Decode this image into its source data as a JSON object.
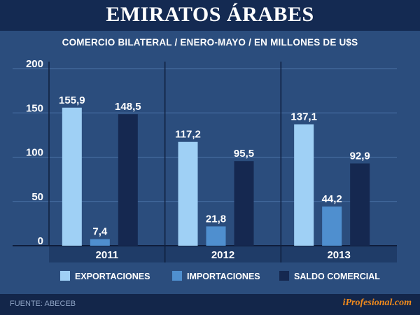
{
  "title": "EMIRATOS ÁRABES",
  "subtitle": "COMERCIO BILATERAL  /  ENERO-MAYO  /  EN MILLONES DE U$S",
  "source": "FUENTE: ABECEB",
  "brand": "iProfesional.com",
  "colors": {
    "background": "#2b4d7d",
    "title_bar": "#142a52",
    "footer": "#13264a",
    "exportaciones": "#9fd0f5",
    "importaciones": "#4f8fcf",
    "saldo": "#152850",
    "brand": "#f08a1c"
  },
  "chart_data": {
    "type": "bar",
    "categories": [
      "2011",
      "2012",
      "2013"
    ],
    "series": [
      {
        "name": "EXPORTACIONES",
        "values": [
          155.9,
          117.2,
          137.1
        ],
        "labels": [
          "155,9",
          "117,2",
          "137,1"
        ]
      },
      {
        "name": "IMPORTACIONES",
        "values": [
          7.4,
          21.8,
          44.2
        ],
        "labels": [
          "7,4",
          "21,8",
          "44,2"
        ]
      },
      {
        "name": "SALDO COMERCIAL",
        "values": [
          148.5,
          95.5,
          92.9
        ],
        "labels": [
          "148,5",
          "95,5",
          "92,9"
        ]
      }
    ],
    "yticks": [
      "200",
      "150",
      "100",
      "50",
      "0"
    ],
    "ylim": [
      0,
      200
    ],
    "grid": true,
    "legend": "bottom"
  }
}
